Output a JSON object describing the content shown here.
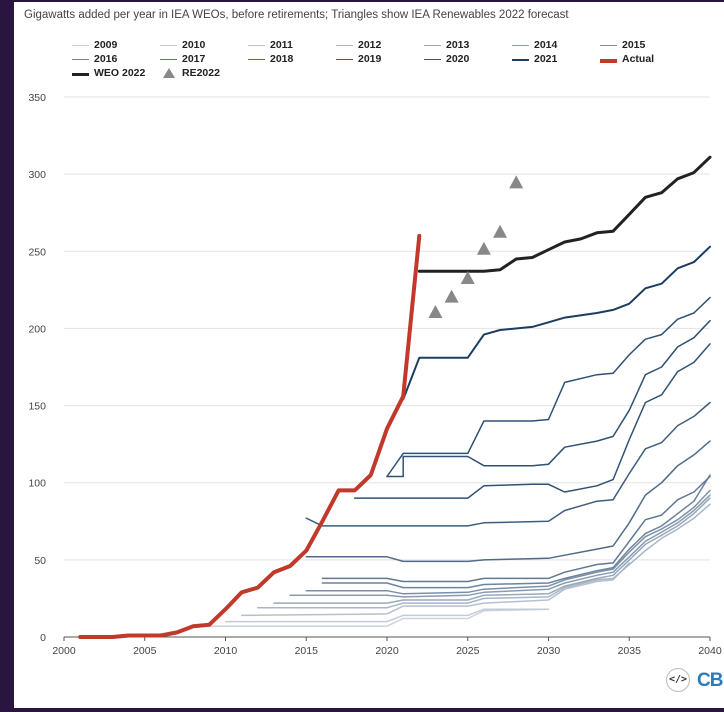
{
  "subtitle": "Gigawatts added per year in IEA WEOs, before retirements; Triangles show IEA Renewables 2022 forecast",
  "logo": {
    "embed_icon": "</>",
    "brand": "CB"
  },
  "colors": {
    "background": "#2a1540",
    "actual": "#c0392b",
    "weo2022": "#222222",
    "triangle": "#888888"
  },
  "legend": [
    {
      "label": "2009",
      "color": "#c9d3de",
      "width": 1.5
    },
    {
      "label": "2010",
      "color": "#c2ccd8",
      "width": 1.5
    },
    {
      "label": "2011",
      "color": "#b4c1ce",
      "width": 1.5
    },
    {
      "label": "2012",
      "color": "#a8b6c6",
      "width": 1.5
    },
    {
      "label": "2013",
      "color": "#98a9bc",
      "width": 1.5
    },
    {
      "label": "2014",
      "color": "#889bb1",
      "width": 1.5
    },
    {
      "label": "2015",
      "color": "#7b90a8",
      "width": 1.5
    },
    {
      "label": "2016",
      "color": "#6d849e",
      "width": 1.5
    },
    {
      "label": "2017",
      "color": "#5f7893",
      "width": 1.5
    },
    {
      "label": "2018",
      "color": "#4f6b88",
      "width": 1.5
    },
    {
      "label": "2019",
      "color": "#3e5d7d",
      "width": 1.5
    },
    {
      "label": "2020",
      "color": "#2f5272",
      "width": 1.5
    },
    {
      "label": "2021",
      "color": "#1b3d62",
      "width": 2
    },
    {
      "label": "Actual",
      "color": "#c0392b",
      "width": 4
    },
    {
      "label": "WEO 2022",
      "color": "#222222",
      "width": 3
    },
    {
      "label": "RE2022",
      "color": "#888888",
      "marker": "triangle"
    }
  ],
  "chart_data": {
    "type": "line",
    "xlabel": "",
    "ylabel": "",
    "xlim": [
      2000,
      2040
    ],
    "ylim": [
      0,
      350
    ],
    "xticks": [
      "2000",
      "2005",
      "2010",
      "2015",
      "2020",
      "2025",
      "2030",
      "2035",
      "2040"
    ],
    "yticks": [
      "0",
      "50",
      "100",
      "150",
      "200",
      "250",
      "300",
      "350"
    ],
    "grid": "horizontal",
    "series": [
      {
        "name": "2009",
        "color": "#c9d3de",
        "width": 1.5,
        "points": [
          [
            2009,
            7
          ],
          [
            2020,
            7
          ],
          [
            2021,
            12
          ],
          [
            2025,
            12
          ],
          [
            2026,
            17
          ],
          [
            2030,
            18
          ]
        ]
      },
      {
        "name": "2010",
        "color": "#c2ccd8",
        "width": 1.5,
        "points": [
          [
            2010,
            10
          ],
          [
            2020,
            10
          ],
          [
            2021,
            14
          ],
          [
            2025,
            14
          ],
          [
            2026,
            18
          ],
          [
            2030,
            18
          ]
        ]
      },
      {
        "name": "2011",
        "color": "#b4c1ce",
        "width": 1.5,
        "points": [
          [
            2011,
            14
          ],
          [
            2020,
            15
          ],
          [
            2021,
            20
          ],
          [
            2025,
            20
          ],
          [
            2026,
            22
          ],
          [
            2030,
            24
          ],
          [
            2031,
            31
          ],
          [
            2033,
            36
          ],
          [
            2034,
            37
          ],
          [
            2035,
            48
          ]
        ]
      },
      {
        "name": "2012",
        "color": "#a8b6c6",
        "width": 1.5,
        "points": [
          [
            2012,
            19
          ],
          [
            2020,
            19
          ],
          [
            2021,
            22
          ],
          [
            2025,
            22
          ],
          [
            2026,
            25
          ],
          [
            2030,
            26
          ],
          [
            2031,
            32
          ],
          [
            2033,
            37
          ],
          [
            2034,
            38
          ],
          [
            2035,
            47
          ],
          [
            2036,
            56
          ],
          [
            2037,
            64
          ],
          [
            2038,
            70
          ],
          [
            2039,
            77
          ],
          [
            2040,
            86
          ]
        ]
      },
      {
        "name": "2013",
        "color": "#98a9bc",
        "width": 1.5,
        "points": [
          [
            2013,
            22
          ],
          [
            2020,
            22
          ],
          [
            2021,
            24
          ],
          [
            2025,
            24
          ],
          [
            2026,
            27
          ],
          [
            2030,
            28
          ],
          [
            2031,
            33
          ],
          [
            2033,
            38
          ],
          [
            2034,
            40
          ],
          [
            2035,
            50
          ],
          [
            2036,
            60
          ],
          [
            2037,
            66
          ],
          [
            2038,
            72
          ],
          [
            2039,
            80
          ],
          [
            2040,
            90
          ]
        ]
      },
      {
        "name": "2014",
        "color": "#889bb1",
        "width": 1.5,
        "points": [
          [
            2014,
            27
          ],
          [
            2020,
            27
          ],
          [
            2021,
            26
          ],
          [
            2025,
            27
          ],
          [
            2026,
            29
          ],
          [
            2030,
            31
          ],
          [
            2031,
            35
          ],
          [
            2033,
            40
          ],
          [
            2034,
            42
          ],
          [
            2035,
            52
          ],
          [
            2036,
            62
          ],
          [
            2037,
            68
          ],
          [
            2038,
            74
          ],
          [
            2039,
            82
          ],
          [
            2040,
            92
          ]
        ]
      },
      {
        "name": "2015",
        "color": "#7b90a8",
        "width": 1.5,
        "points": [
          [
            2015,
            30
          ],
          [
            2020,
            30
          ],
          [
            2021,
            28
          ],
          [
            2025,
            29
          ],
          [
            2026,
            31
          ],
          [
            2030,
            33
          ],
          [
            2031,
            37
          ],
          [
            2033,
            42
          ],
          [
            2034,
            44
          ],
          [
            2035,
            55
          ],
          [
            2036,
            65
          ],
          [
            2037,
            70
          ],
          [
            2038,
            76
          ],
          [
            2039,
            84
          ],
          [
            2040,
            95
          ]
        ]
      },
      {
        "name": "2016",
        "color": "#6d849e",
        "width": 1.5,
        "points": [
          [
            2016,
            35
          ],
          [
            2020,
            35
          ],
          [
            2021,
            32
          ],
          [
            2025,
            32
          ],
          [
            2026,
            34
          ],
          [
            2030,
            35
          ],
          [
            2031,
            38
          ],
          [
            2033,
            43
          ],
          [
            2034,
            45
          ],
          [
            2035,
            57
          ],
          [
            2036,
            67
          ],
          [
            2037,
            72
          ],
          [
            2038,
            80
          ],
          [
            2039,
            88
          ],
          [
            2040,
            105
          ]
        ]
      },
      {
        "name": "2017",
        "color": "#5f7893",
        "width": 1.5,
        "points": [
          [
            2016,
            38
          ],
          [
            2020,
            38
          ],
          [
            2021,
            36
          ],
          [
            2025,
            36
          ],
          [
            2026,
            38
          ],
          [
            2030,
            38
          ],
          [
            2031,
            42
          ],
          [
            2033,
            47
          ],
          [
            2034,
            48
          ],
          [
            2035,
            62
          ],
          [
            2036,
            76
          ],
          [
            2037,
            79
          ],
          [
            2038,
            89
          ],
          [
            2039,
            94
          ],
          [
            2040,
            104
          ]
        ]
      },
      {
        "name": "2018",
        "color": "#4f6b88",
        "width": 1.5,
        "points": [
          [
            2015,
            52
          ],
          [
            2020,
            52
          ],
          [
            2021,
            49
          ],
          [
            2025,
            49
          ],
          [
            2026,
            50
          ],
          [
            2030,
            51
          ],
          [
            2031,
            53
          ],
          [
            2033,
            57
          ],
          [
            2034,
            59
          ],
          [
            2035,
            74
          ],
          [
            2036,
            92
          ],
          [
            2037,
            100
          ],
          [
            2038,
            111
          ],
          [
            2039,
            118
          ],
          [
            2040,
            127
          ]
        ]
      },
      {
        "name": "2019",
        "color": "#3e5d7d",
        "width": 1.5,
        "points": [
          [
            2015,
            77
          ],
          [
            2016,
            72
          ],
          [
            2020,
            72
          ],
          [
            2025,
            72
          ],
          [
            2026,
            74
          ],
          [
            2030,
            75
          ],
          [
            2031,
            82
          ],
          [
            2033,
            88
          ],
          [
            2034,
            89
          ],
          [
            2035,
            106
          ],
          [
            2036,
            122
          ],
          [
            2037,
            126
          ],
          [
            2038,
            137
          ],
          [
            2039,
            143
          ],
          [
            2040,
            152
          ]
        ]
      },
      {
        "name": "2020",
        "color": "#2f5272",
        "width": 1.5,
        "points": [
          [
            2018,
            90
          ],
          [
            2020,
            90
          ],
          [
            2021,
            90
          ],
          [
            2025,
            90
          ],
          [
            2026,
            98
          ],
          [
            2029,
            99
          ],
          [
            2030,
            99
          ],
          [
            2031,
            94
          ],
          [
            2033,
            98
          ],
          [
            2034,
            102
          ],
          [
            2035,
            128
          ],
          [
            2036,
            152
          ],
          [
            2037,
            157
          ],
          [
            2038,
            172
          ],
          [
            2039,
            178
          ],
          [
            2040,
            190
          ]
        ]
      },
      {
        "name": "2020b",
        "color": "#2f5272",
        "width": 1.5,
        "points": [
          [
            2020,
            104
          ],
          [
            2021,
            104
          ],
          [
            2021,
            117
          ],
          [
            2025,
            117
          ],
          [
            2026,
            111
          ],
          [
            2029,
            111
          ],
          [
            2030,
            112
          ],
          [
            2031,
            123
          ],
          [
            2033,
            127
          ],
          [
            2034,
            130
          ],
          [
            2035,
            147
          ],
          [
            2036,
            170
          ],
          [
            2037,
            175
          ],
          [
            2038,
            188
          ],
          [
            2039,
            194
          ],
          [
            2040,
            205
          ]
        ]
      },
      {
        "name": "2020c",
        "color": "#2f5272",
        "width": 1.5,
        "points": [
          [
            2020,
            104
          ],
          [
            2021,
            119
          ],
          [
            2025,
            119
          ],
          [
            2026,
            140
          ],
          [
            2029,
            140
          ],
          [
            2030,
            141
          ],
          [
            2031,
            165
          ],
          [
            2033,
            170
          ],
          [
            2034,
            171
          ],
          [
            2035,
            183
          ],
          [
            2036,
            193
          ],
          [
            2037,
            196
          ],
          [
            2038,
            206
          ],
          [
            2039,
            210
          ],
          [
            2040,
            220
          ]
        ]
      },
      {
        "name": "2021",
        "color": "#1b3d62",
        "width": 2,
        "points": [
          [
            2021,
            154
          ],
          [
            2022,
            181
          ],
          [
            2025,
            181
          ],
          [
            2026,
            196
          ],
          [
            2027,
            199
          ],
          [
            2029,
            201
          ],
          [
            2030,
            204
          ],
          [
            2031,
            207
          ],
          [
            2033,
            210
          ],
          [
            2034,
            212
          ],
          [
            2035,
            216
          ],
          [
            2036,
            226
          ],
          [
            2037,
            229
          ],
          [
            2038,
            239
          ],
          [
            2039,
            243
          ],
          [
            2040,
            253
          ]
        ]
      },
      {
        "name": "WEO 2022",
        "color": "#222222",
        "width": 3,
        "points": [
          [
            2022,
            237
          ],
          [
            2025,
            237
          ],
          [
            2026,
            237
          ],
          [
            2027,
            238
          ],
          [
            2028,
            245
          ],
          [
            2029,
            246
          ],
          [
            2030,
            251
          ],
          [
            2031,
            256
          ],
          [
            2032,
            258
          ],
          [
            2033,
            262
          ],
          [
            2034,
            263
          ],
          [
            2035,
            274
          ],
          [
            2036,
            285
          ],
          [
            2037,
            288
          ],
          [
            2038,
            297
          ],
          [
            2039,
            301
          ],
          [
            2040,
            311
          ]
        ]
      },
      {
        "name": "Actual",
        "color": "#c0392b",
        "width": 4,
        "points": [
          [
            2001,
            0
          ],
          [
            2003,
            0
          ],
          [
            2004,
            1
          ],
          [
            2006,
            1
          ],
          [
            2007,
            3
          ],
          [
            2008,
            7
          ],
          [
            2009,
            8
          ],
          [
            2010,
            18
          ],
          [
            2011,
            29
          ],
          [
            2012,
            32
          ],
          [
            2013,
            42
          ],
          [
            2014,
            46
          ],
          [
            2015,
            56
          ],
          [
            2016,
            75
          ],
          [
            2017,
            95
          ],
          [
            2018,
            95
          ],
          [
            2019,
            105
          ],
          [
            2020,
            135
          ],
          [
            2021,
            156
          ],
          [
            2022,
            260
          ]
        ]
      }
    ],
    "triangles": {
      "name": "RE2022",
      "points": [
        [
          2023,
          210
        ],
        [
          2024,
          220
        ],
        [
          2025,
          232
        ],
        [
          2026,
          251
        ],
        [
          2027,
          262
        ],
        [
          2028,
          294
        ]
      ]
    }
  }
}
